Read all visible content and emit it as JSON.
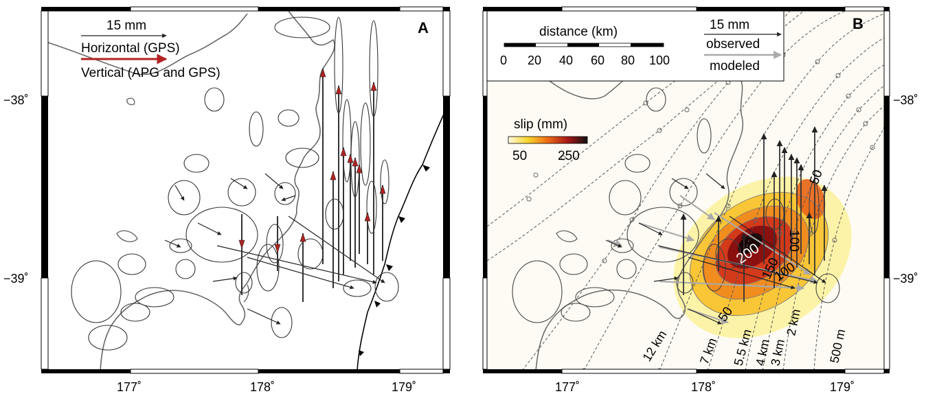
{
  "panelA": {
    "label": "A",
    "legend": {
      "scale": "15 mm",
      "horizontal": "Horizontal (GPS)",
      "vertical": "Vertical (APG and GPS)"
    },
    "lat_labels": [
      "−38˚",
      "−39˚"
    ],
    "lon_labels": [
      "177˚",
      "178˚",
      "179˚"
    ]
  },
  "panelB": {
    "label": "B",
    "scalebar": {
      "title": "distance (km)",
      "ticks": [
        "0",
        "20",
        "40",
        "60",
        "80",
        "100"
      ]
    },
    "vector_legend": {
      "scale": "15 mm",
      "observed": "observed",
      "modeled": "modeled"
    },
    "slip_legend": {
      "title": "slip (mm)",
      "ticks": [
        "50",
        "250"
      ]
    },
    "contours": [
      "200",
      "150",
      "100",
      "100",
      "50",
      "50"
    ],
    "depths": [
      "12 km",
      "7 km",
      "5.5 km",
      "4 km",
      "3 km",
      "2 km",
      "500 m"
    ],
    "lat_labels": [
      "−38˚",
      "−39˚"
    ],
    "lon_labels": [
      "177˚",
      "178˚",
      "179˚"
    ]
  },
  "colors": {
    "vertical_arrow": "#b22222",
    "coast": "#666666",
    "ellipse": "#444444"
  }
}
